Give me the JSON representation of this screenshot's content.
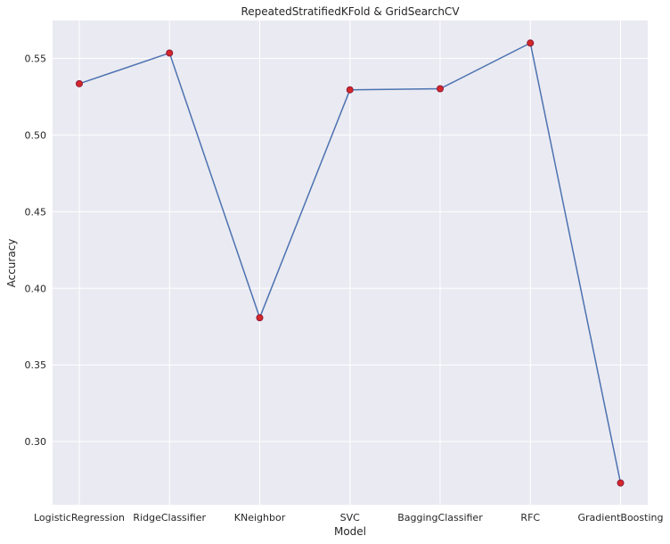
{
  "chart_data": {
    "type": "line",
    "title": "RepeatedStratifiedKFold & GridSearchCV",
    "xlabel": "Model",
    "ylabel": "Accuracy",
    "categories": [
      "LogisticRegression",
      "RidgeClassifier",
      "KNeighbor",
      "SVC",
      "BaggingClassifier",
      "RFC",
      "GradientBoosting"
    ],
    "series": [
      {
        "values": [
          0.5335,
          0.5535,
          0.3808,
          0.5295,
          0.5302,
          0.56,
          0.273
        ]
      }
    ],
    "ylim": [
      0.2588,
      0.5747
    ],
    "yticks": [
      0.3,
      0.35,
      0.4,
      0.45,
      0.5,
      0.55
    ],
    "ytick_labels": [
      "0.30",
      "0.35",
      "0.40",
      "0.45",
      "0.50",
      "0.55"
    ],
    "grid": true,
    "colors": {
      "background": "#eaeaf2",
      "grid": "#ffffff",
      "line": "#4c72b0",
      "marker_face": "#d62728",
      "marker_edge": "#8b1a3a",
      "text": "#262626"
    }
  }
}
